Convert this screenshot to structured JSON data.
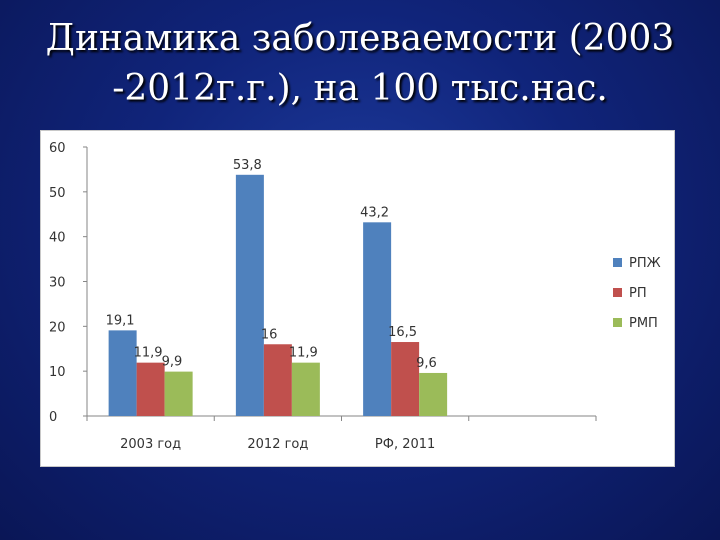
{
  "slide": {
    "title_line1": "Динамика заболеваемости (2003",
    "title_line2": "-2012г.г.), на 100 тыс.нас."
  },
  "chart_data": {
    "type": "bar",
    "categories": [
      "2003 год",
      "2012 год",
      "РФ, 2011"
    ],
    "series": [
      {
        "name": "РПЖ",
        "values": [
          19.1,
          53.8,
          43.2
        ],
        "labels": [
          "19,1",
          "53,8",
          "43,2"
        ],
        "color": "#4f81bd"
      },
      {
        "name": "РП",
        "values": [
          11.9,
          16,
          16.5
        ],
        "labels": [
          "11,9",
          "16",
          "16,5"
        ],
        "color": "#c0504d"
      },
      {
        "name": "РМП",
        "values": [
          9.9,
          11.9,
          9.6
        ],
        "labels": [
          "9,9",
          "11,9",
          "9,6"
        ],
        "color": "#9bbb59"
      }
    ],
    "ylim": [
      0,
      60
    ],
    "yticks": [
      0,
      10,
      20,
      30,
      40,
      50,
      60
    ],
    "grid": false,
    "legend_position": "right"
  }
}
